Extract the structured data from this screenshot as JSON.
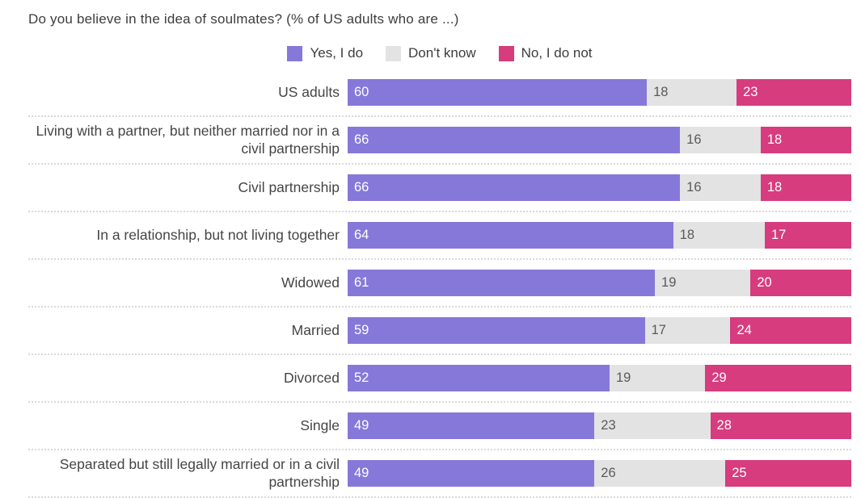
{
  "title": "Do you believe in the idea of soulmates? (% of US adults who are ...)",
  "legend": [
    {
      "label": "Yes, I do",
      "color": "#8678d9"
    },
    {
      "label": "Don't know",
      "color": "#e3e3e3"
    },
    {
      "label": "No, I do not",
      "color": "#d63c7e"
    }
  ],
  "chart_data": {
    "type": "bar",
    "variant": "horizontal-stacked",
    "title": "Do you believe in the idea of soulmates? (% of US adults who are ...)",
    "unit": "%",
    "legend_position": "top",
    "grid": false,
    "value_labels": "inside-start",
    "categories": [
      "US adults",
      "Living with a partner, but neither married nor in a civil partnership",
      "Civil partnership",
      "In a relationship, but not living together",
      "Widowed",
      "Married",
      "Divorced",
      "Single",
      "Separated but still legally married or in a civil partnership"
    ],
    "series": [
      {
        "name": "Yes, I do",
        "key": "yes-i-do",
        "color": "#8678d9",
        "label_color": "#ffffff",
        "values": [
          60,
          66,
          66,
          64,
          61,
          59,
          52,
          49,
          49
        ]
      },
      {
        "name": "Don't know",
        "key": "dont-know",
        "color": "#e3e3e3",
        "label_color": "#5a5a5a",
        "values": [
          18,
          16,
          16,
          18,
          19,
          17,
          19,
          23,
          26
        ]
      },
      {
        "name": "No, I do not",
        "key": "no-i-do-not",
        "color": "#d63c7e",
        "label_color": "#ffffff",
        "values": [
          23,
          18,
          18,
          17,
          20,
          24,
          29,
          28,
          25
        ]
      }
    ]
  }
}
